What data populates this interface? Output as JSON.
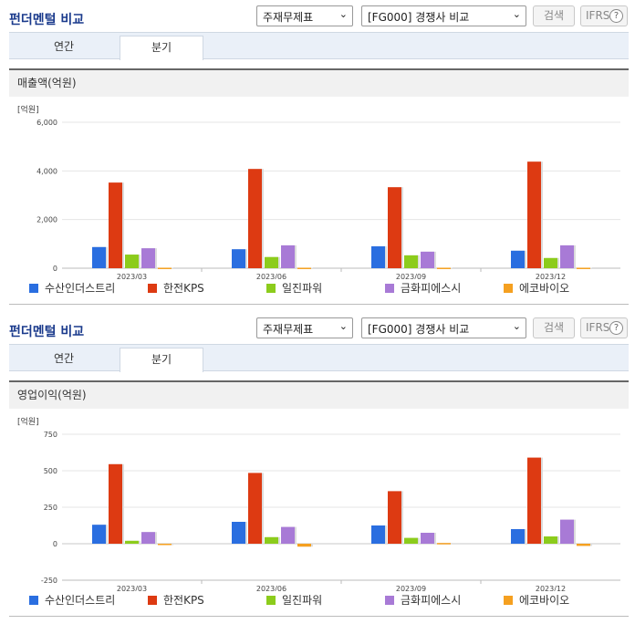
{
  "panels": [
    {
      "title": "펀더멘털 비교",
      "select_indicator": "주재무제표",
      "select_compare": "[FG000] 경쟁사 비교",
      "search_label": "검색",
      "ifrs_label": "IFRS",
      "help_label": "?",
      "tabs": [
        "연간",
        "분기"
      ],
      "active_tab": "분기",
      "section_title": "매출액(억원)",
      "unit_label": "[억원]",
      "chart_data": {
        "type": "bar",
        "title": "매출액(억원)",
        "ylabel": "[억원]",
        "categories": [
          "2023/03",
          "2023/06",
          "2023/09",
          "2023/12"
        ],
        "ylim": [
          0,
          6000
        ],
        "yticks": [
          0,
          2000,
          4000,
          6000
        ],
        "ytick_labels": [
          "0",
          "2,000",
          "4,000",
          "6,000"
        ],
        "grid": true,
        "legend_position": "bottom",
        "series": [
          {
            "name": "수산인더스트리",
            "color": "#2a6ee0",
            "values": [
              870,
              780,
              900,
              720
            ]
          },
          {
            "name": "한전KPS",
            "color": "#dd3a12",
            "values": [
              3520,
              4080,
              3330,
              4380
            ]
          },
          {
            "name": "일진파워",
            "color": "#8ccc1c",
            "values": [
              560,
              460,
              530,
              420
            ]
          },
          {
            "name": "금화피에스시",
            "color": "#a87ad6",
            "values": [
              820,
              940,
              680,
              940
            ]
          },
          {
            "name": "에코바이오",
            "color": "#f5a020",
            "values": [
              20,
              20,
              20,
              20
            ]
          }
        ]
      }
    },
    {
      "title": "펀더멘털 비교",
      "select_indicator": "주재무제표",
      "select_compare": "[FG000] 경쟁사 비교",
      "search_label": "검색",
      "ifrs_label": "IFRS",
      "help_label": "?",
      "tabs": [
        "연간",
        "분기"
      ],
      "active_tab": "분기",
      "section_title": "영업이익(억원)",
      "unit_label": "[억원]",
      "chart_data": {
        "type": "bar",
        "title": "영업이익(억원)",
        "ylabel": "[억원]",
        "categories": [
          "2023/03",
          "2023/06",
          "2023/09",
          "2023/12"
        ],
        "ylim": [
          -250,
          750
        ],
        "yticks": [
          -250,
          0,
          250,
          500,
          750
        ],
        "ytick_labels": [
          "-250",
          "0",
          "250",
          "500",
          "750"
        ],
        "grid": true,
        "legend_position": "bottom",
        "series": [
          {
            "name": "수산인더스트리",
            "color": "#2a6ee0",
            "values": [
              130,
              150,
              125,
              100
            ]
          },
          {
            "name": "한전KPS",
            "color": "#dd3a12",
            "values": [
              545,
              485,
              360,
              590
            ]
          },
          {
            "name": "일진파워",
            "color": "#8ccc1c",
            "values": [
              20,
              45,
              40,
              50
            ]
          },
          {
            "name": "금화피에스시",
            "color": "#a87ad6",
            "values": [
              80,
              115,
              75,
              165
            ]
          },
          {
            "name": "에코바이오",
            "color": "#f5a020",
            "values": [
              0,
              -20,
              5,
              -15
            ]
          }
        ]
      }
    }
  ]
}
